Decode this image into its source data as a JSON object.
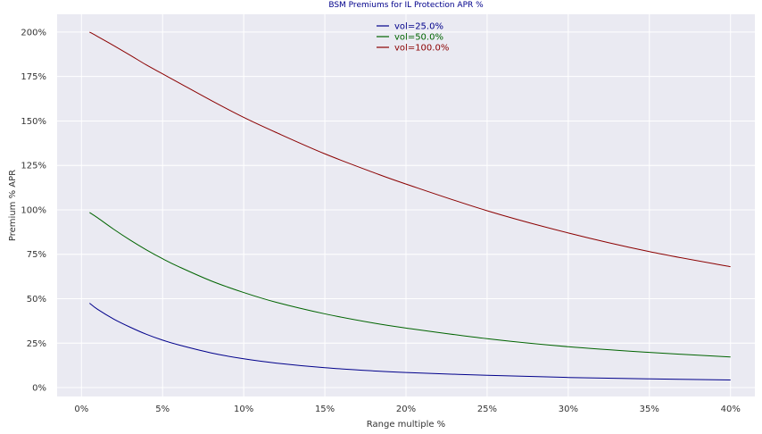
{
  "chart_data": {
    "type": "line",
    "title": "BSM Premiums for IL Protection APR %",
    "title_color": "#00008b",
    "xlabel": "Range multiple %",
    "ylabel": "Premium % APR",
    "xlim": [
      -1.5,
      41.5
    ],
    "ylim": [
      -5,
      210
    ],
    "xticks": [
      0,
      5,
      10,
      15,
      20,
      25,
      30,
      35,
      40
    ],
    "xtick_labels": [
      "0%",
      "5%",
      "10%",
      "15%",
      "20%",
      "25%",
      "30%",
      "35%",
      "40%"
    ],
    "yticks": [
      0,
      25,
      50,
      75,
      100,
      125,
      150,
      175,
      200
    ],
    "ytick_labels": [
      "0%",
      "25%",
      "50%",
      "75%",
      "100%",
      "125%",
      "150%",
      "175%",
      "200%"
    ],
    "grid": true,
    "background": "#eaeaf2",
    "legend_position": "top-center",
    "x": [
      0.5,
      1,
      2,
      3,
      4,
      5,
      6,
      8,
      10,
      12,
      15,
      18,
      20,
      25,
      30,
      35,
      40
    ],
    "series": [
      {
        "name": "vol=25.0%",
        "color": "#00008b",
        "values": [
          47.5,
          44.0,
          38.5,
          34.0,
          30.0,
          26.7,
          24.0,
          19.5,
          16.2,
          13.8,
          11.2,
          9.4,
          8.5,
          6.9,
          5.7,
          4.9,
          4.3
        ]
      },
      {
        "name": "vol=50.0%",
        "color": "#006400",
        "values": [
          98.5,
          95.5,
          89.0,
          83.0,
          77.5,
          72.5,
          68.0,
          60.0,
          53.5,
          48.0,
          41.5,
          36.3,
          33.5,
          27.5,
          23.0,
          19.8,
          17.2
        ]
      },
      {
        "name": "vol=100.0%",
        "color": "#8b0000",
        "values": [
          200.0,
          197.5,
          192.3,
          187.0,
          181.5,
          176.5,
          171.5,
          161.5,
          152.0,
          143.5,
          131.5,
          121.0,
          114.5,
          99.5,
          87.0,
          76.5,
          68.0
        ]
      }
    ]
  }
}
